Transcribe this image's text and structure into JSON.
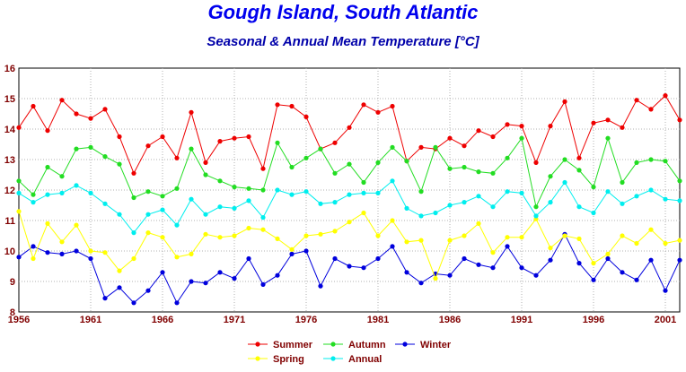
{
  "chart_data": {
    "type": "line",
    "title": "Gough Island, South Atlantic",
    "subtitle": "Seasonal & Annual Mean Temperature [°C]",
    "xlabel": "",
    "ylabel": "",
    "xlim": [
      1956,
      2002
    ],
    "ylim": [
      8,
      16
    ],
    "yticks": [
      8,
      9,
      10,
      11,
      12,
      13,
      14,
      15,
      16
    ],
    "xticks": [
      1956,
      1961,
      1966,
      1971,
      1976,
      1981,
      1986,
      1991,
      1996,
      2001
    ],
    "grid": true,
    "legend_position": "bottom",
    "x": [
      1956,
      1957,
      1958,
      1959,
      1960,
      1961,
      1962,
      1963,
      1964,
      1965,
      1966,
      1967,
      1968,
      1969,
      1970,
      1971,
      1972,
      1973,
      1974,
      1975,
      1976,
      1977,
      1978,
      1979,
      1980,
      1981,
      1982,
      1983,
      1984,
      1985,
      1986,
      1987,
      1988,
      1989,
      1990,
      1991,
      1992,
      1993,
      1994,
      1995,
      1996,
      1997,
      1998,
      1999,
      2000,
      2001,
      2002
    ],
    "series": [
      {
        "name": "Summer",
        "color": "#ee0000",
        "values": [
          14.05,
          14.75,
          13.95,
          14.95,
          14.5,
          14.35,
          14.65,
          13.75,
          12.55,
          13.45,
          13.75,
          13.05,
          14.55,
          12.9,
          13.6,
          13.7,
          13.75,
          12.7,
          14.8,
          14.75,
          14.4,
          13.35,
          13.55,
          14.05,
          14.8,
          14.55,
          14.75,
          12.95,
          13.4,
          13.35,
          13.7,
          13.45,
          13.95,
          13.75,
          14.15,
          14.1,
          12.9,
          14.1,
          14.9,
          13.05,
          14.2,
          14.3,
          14.05,
          14.95,
          14.65,
          15.1,
          14.3
        ]
      },
      {
        "name": "Autumn",
        "color": "#22dd22",
        "values": [
          12.3,
          11.85,
          12.75,
          12.45,
          13.35,
          13.4,
          13.1,
          12.85,
          11.75,
          11.95,
          11.8,
          12.05,
          13.35,
          12.5,
          12.3,
          12.1,
          12.05,
          12.0,
          13.55,
          12.75,
          13.05,
          13.35,
          12.55,
          12.85,
          12.25,
          12.9,
          13.4,
          12.95,
          11.95,
          13.4,
          12.7,
          12.75,
          12.6,
          12.55,
          13.05,
          13.7,
          11.45,
          12.45,
          13.0,
          12.65,
          12.1,
          13.7,
          12.25,
          12.9,
          13.0,
          12.95,
          12.3
        ]
      },
      {
        "name": "Winter",
        "color": "#0000dd",
        "values": [
          9.8,
          10.15,
          9.95,
          9.9,
          10.0,
          9.75,
          8.45,
          8.8,
          8.3,
          8.7,
          9.3,
          8.3,
          9.0,
          8.95,
          9.3,
          9.1,
          9.75,
          8.9,
          9.2,
          9.9,
          10.0,
          8.85,
          9.75,
          9.5,
          9.45,
          9.75,
          10.15,
          9.3,
          8.95,
          9.25,
          9.2,
          9.75,
          9.55,
          9.45,
          10.15,
          9.45,
          9.2,
          9.7,
          10.55,
          9.6,
          9.05,
          9.75,
          9.3,
          9.05,
          9.7,
          8.7,
          9.7
        ]
      },
      {
        "name": "Spring",
        "color": "#ffff00",
        "values": [
          11.3,
          9.75,
          10.9,
          10.3,
          10.85,
          10.0,
          9.95,
          9.35,
          9.75,
          10.6,
          10.45,
          9.8,
          9.9,
          10.55,
          10.45,
          10.5,
          10.75,
          10.7,
          10.4,
          10.05,
          10.5,
          10.55,
          10.65,
          10.95,
          11.25,
          10.5,
          11.0,
          10.3,
          10.35,
          9.1,
          10.35,
          10.5,
          10.9,
          9.95,
          10.45,
          10.45,
          11.05,
          10.1,
          10.5,
          10.4,
          9.6,
          9.9,
          10.5,
          10.25,
          10.7,
          10.25,
          10.35
        ]
      },
      {
        "name": "Annual",
        "color": "#00eeee",
        "values": [
          11.9,
          11.6,
          11.85,
          11.9,
          12.15,
          11.9,
          11.55,
          11.2,
          10.6,
          11.2,
          11.35,
          10.85,
          11.7,
          11.2,
          11.45,
          11.4,
          11.65,
          11.1,
          12.0,
          11.85,
          11.95,
          11.55,
          11.6,
          11.85,
          11.9,
          11.9,
          12.3,
          11.4,
          11.15,
          11.25,
          11.5,
          11.6,
          11.8,
          11.45,
          11.95,
          11.9,
          11.15,
          11.6,
          12.25,
          11.45,
          11.25,
          11.95,
          11.55,
          11.8,
          12.0,
          11.7,
          11.65
        ]
      }
    ]
  }
}
